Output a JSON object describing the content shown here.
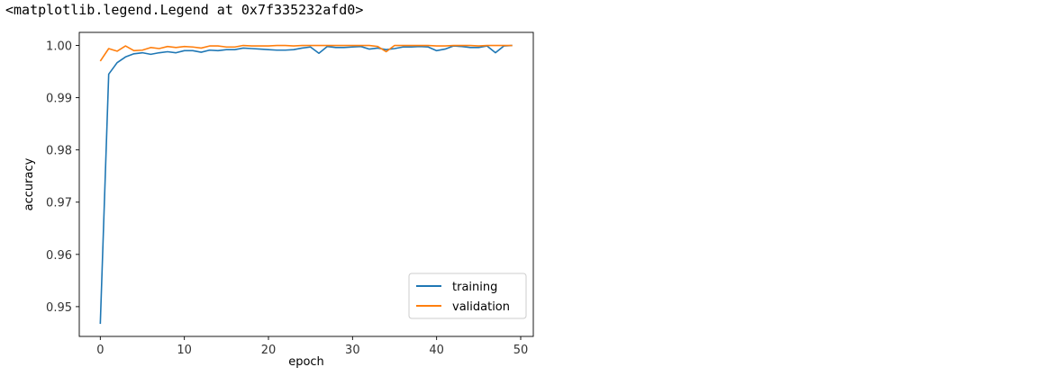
{
  "output": {
    "repr_text": "<matplotlib.legend.Legend at 0x7f335232afd0>"
  },
  "chart_data": {
    "type": "line",
    "title": "",
    "xlabel": "epoch",
    "ylabel": "accuracy",
    "xlim": [
      -2.5,
      51.5
    ],
    "ylim": [
      0.9443,
      1.0025
    ],
    "xticks": [
      0,
      10,
      20,
      30,
      40,
      50
    ],
    "yticks": [
      0.95,
      0.96,
      0.97,
      0.98,
      0.99,
      1.0
    ],
    "ytick_labels": [
      "0.95",
      "0.96",
      "0.97",
      "0.98",
      "0.99",
      "1.00"
    ],
    "legend": {
      "position": "lower right"
    },
    "grid": false,
    "x": [
      0,
      1,
      2,
      3,
      4,
      5,
      6,
      7,
      8,
      9,
      10,
      11,
      12,
      13,
      14,
      15,
      16,
      17,
      18,
      19,
      20,
      21,
      22,
      23,
      24,
      25,
      26,
      27,
      28,
      29,
      30,
      31,
      32,
      33,
      34,
      35,
      36,
      37,
      38,
      39,
      40,
      41,
      42,
      43,
      44,
      45,
      46,
      47,
      48,
      49
    ],
    "series": [
      {
        "name": "training",
        "color": "#1f77b4",
        "values": [
          0.9467,
          0.9945,
          0.9967,
          0.9978,
          0.9984,
          0.9986,
          0.9983,
          0.9986,
          0.9988,
          0.9986,
          0.999,
          0.999,
          0.9987,
          0.9991,
          0.999,
          0.9992,
          0.9992,
          0.9995,
          0.9994,
          0.9993,
          0.9992,
          0.9991,
          0.9991,
          0.9992,
          0.9995,
          0.9997,
          0.9985,
          0.9998,
          0.9996,
          0.9996,
          0.9997,
          0.9998,
          0.9993,
          0.9995,
          0.9992,
          0.9994,
          0.9997,
          0.9997,
          0.9998,
          0.9997,
          0.999,
          0.9993,
          0.9999,
          0.9998,
          0.9996,
          0.9996,
          0.9999,
          0.9986,
          0.9999,
          1.0
        ]
      },
      {
        "name": "validation",
        "color": "#ff7f0e",
        "values": [
          0.997,
          0.9994,
          0.9989,
          0.9999,
          0.999,
          0.9991,
          0.9996,
          0.9994,
          0.9998,
          0.9996,
          0.9998,
          0.9997,
          0.9995,
          0.9999,
          0.9999,
          0.9997,
          0.9997,
          1.0,
          0.9999,
          0.9999,
          0.9999,
          1.0,
          1.0,
          0.9999,
          1.0,
          1.0,
          1.0,
          1.0,
          1.0,
          1.0,
          1.0,
          1.0,
          1.0,
          0.9998,
          0.9988,
          1.0,
          1.0,
          1.0,
          1.0,
          1.0,
          0.9999,
          0.9999,
          1.0,
          1.0,
          1.0,
          0.9999,
          1.0,
          1.0,
          1.0,
          1.0
        ]
      }
    ]
  }
}
